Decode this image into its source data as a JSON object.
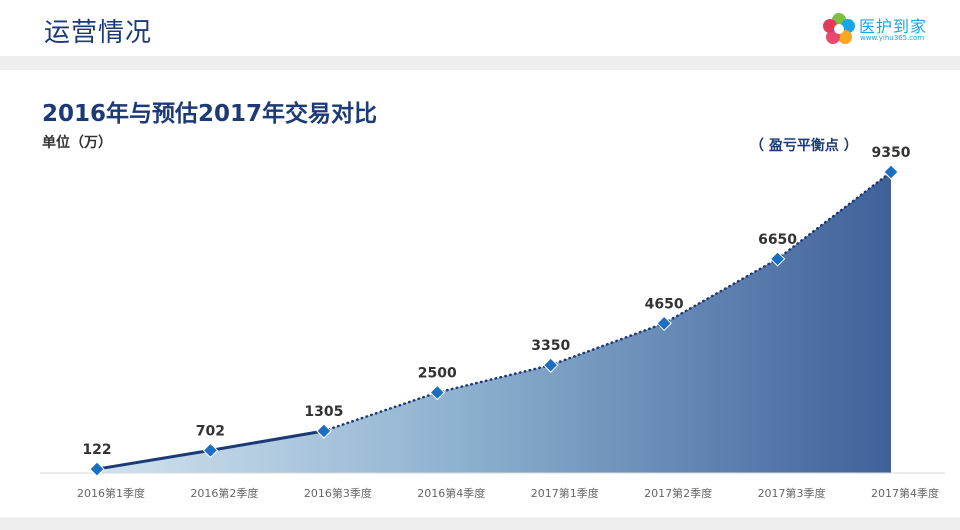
{
  "header": {
    "title": "运营情况",
    "logo_name": "医护到家",
    "logo_url": "www.yihu365.com"
  },
  "chart_title": "2016年与预估2017年交易对比",
  "unit_label": "单位（万）",
  "breakeven_note": "（ 盈亏平衡点 ）",
  "chart_data": {
    "type": "area",
    "title": "2016年与预估2017年交易对比",
    "ylabel": "单位（万）",
    "categories": [
      "2016第1季度",
      "2016第2季度",
      "2016第3季度",
      "2016第4季度",
      "2017第1季度",
      "2017第2季度",
      "2017第3季度",
      "2017第4季度"
    ],
    "values": [
      122,
      702,
      1305,
      2500,
      3350,
      4650,
      6650,
      9350
    ],
    "value_labels": [
      "122",
      "702",
      "1305",
      "2500",
      "3350",
      "4650",
      "6650",
      "9350"
    ],
    "ylim": [
      0,
      10000
    ],
    "actual_points": 3,
    "annotation": "（ 盈亏平衡点 ）",
    "grid": false
  },
  "colors": {
    "title": "#1c3a78",
    "marker": "#1a6fc2",
    "area_light": "#c8dcea",
    "area_dark": "#44639a",
    "line": "#1c3a78"
  },
  "icons": {
    "logo": "flower-logo-icon"
  }
}
